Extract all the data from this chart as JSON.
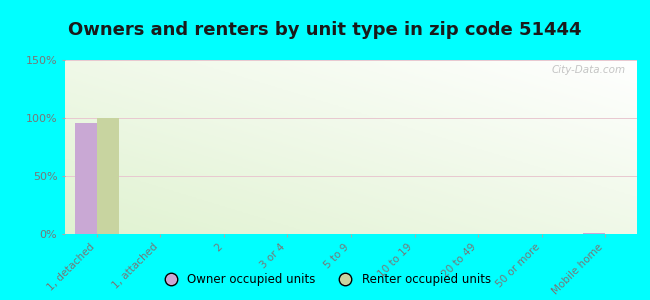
{
  "title": "Owners and renters by unit type in zip code 51444",
  "categories": [
    "1, detached",
    "1, attached",
    "2",
    "3 or 4",
    "5 to 9",
    "10 to 19",
    "20 to 49",
    "50 or more",
    "Mobile home"
  ],
  "owner_values": [
    96,
    0,
    0,
    0,
    0,
    0,
    0,
    0,
    1
  ],
  "renter_values": [
    100,
    0,
    0,
    0,
    0,
    0,
    0,
    0,
    0
  ],
  "owner_color": "#c9a8d4",
  "renter_color": "#c8d4a0",
  "background_color": "#00ffff",
  "plot_bg_color": "#e8f0d0",
  "ylim": [
    0,
    150
  ],
  "yticks": [
    0,
    50,
    100,
    150
  ],
  "ytick_labels": [
    "0%",
    "50%",
    "100%",
    "150%"
  ],
  "bar_width": 0.35,
  "title_fontsize": 13,
  "watermark": "City-Data.com",
  "grid_color": "#e0e8cc",
  "tick_label_color": "#777777",
  "title_color": "#1a1a1a"
}
